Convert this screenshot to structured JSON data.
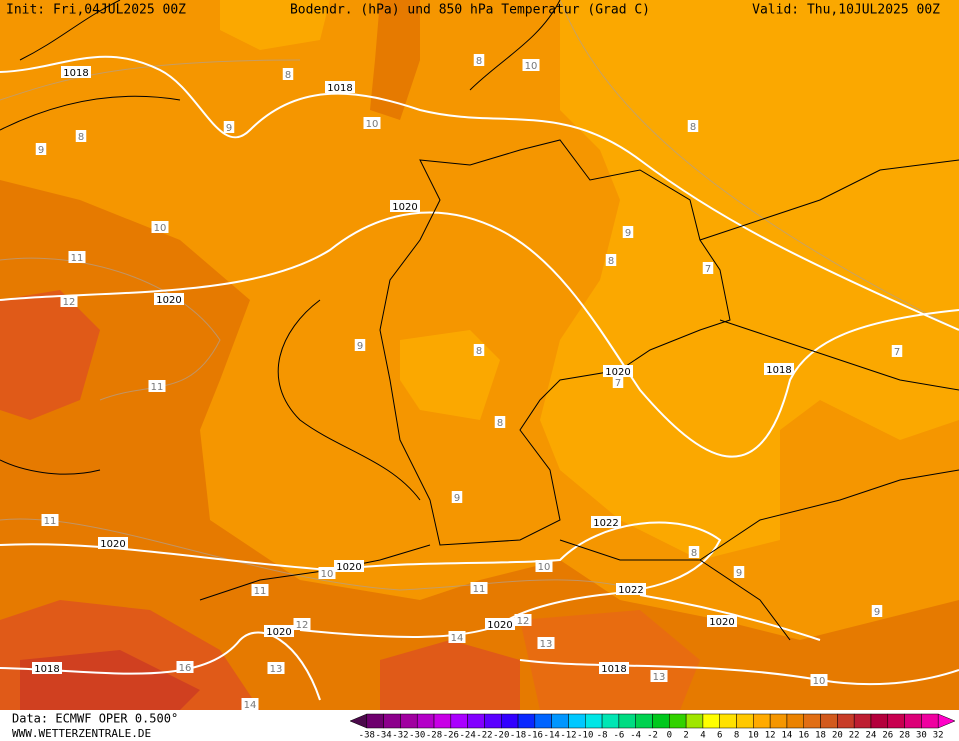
{
  "header": {
    "init": "Init: Fri,04JUL2025 00Z",
    "title": "Bodendr. (hPa) und 850 hPa Temperatur (Grad C)",
    "valid": "Valid: Thu,10JUL2025 00Z"
  },
  "footer": {
    "source": "Data: ECMWF OPER 0.500°",
    "website": "WWW.WETTERZENTRALE.DE"
  },
  "colorbar": {
    "labels": [
      "-38",
      "-34",
      "-32",
      "-30",
      "-28",
      "-26",
      "-24",
      "-22",
      "-20",
      "-18",
      "-16",
      "-14",
      "-12",
      "-10",
      "-8",
      "-6",
      "-4",
      "-2",
      "0",
      "2",
      "4",
      "6",
      "8",
      "10",
      "12",
      "14",
      "16",
      "18",
      "20",
      "22",
      "24",
      "26",
      "28",
      "30",
      "32"
    ],
    "colors": [
      "#4b0a4b",
      "#6e006e",
      "#8c008c",
      "#a000a0",
      "#b400c8",
      "#c800e6",
      "#aa00ff",
      "#8200ff",
      "#5a00ff",
      "#3200ff",
      "#0a28ff",
      "#0064ff",
      "#0096ff",
      "#00c8ff",
      "#00e6e6",
      "#00e6b4",
      "#00dc82",
      "#00d250",
      "#00c81e",
      "#32d200",
      "#a0e600",
      "#ffff00",
      "#ffe100",
      "#ffc800",
      "#ffaa00",
      "#f59600",
      "#eb8200",
      "#e16e14",
      "#d25a1e",
      "#c83c28",
      "#be1e32",
      "#b4003c",
      "#c80050",
      "#dc0078",
      "#f000a0",
      "#ff00c8"
    ]
  },
  "map": {
    "contour_labels": [
      "1018",
      "8",
      "1018",
      "10",
      "9",
      "8",
      "9",
      "8",
      "10",
      "8",
      "10",
      "1020",
      "9",
      "11",
      "8",
      "7",
      "12",
      "1020",
      "9",
      "8",
      "1020",
      "7",
      "1018",
      "7",
      "11",
      "8",
      "9",
      "11",
      "1022",
      "1020",
      "8",
      "10",
      "1020",
      "10",
      "9",
      "11",
      "11",
      "1022",
      "9",
      "1020",
      "12",
      "1020",
      "12",
      "1020",
      "14",
      "13",
      "1018",
      "16",
      "13",
      "1018",
      "13",
      "10",
      "14"
    ]
  }
}
